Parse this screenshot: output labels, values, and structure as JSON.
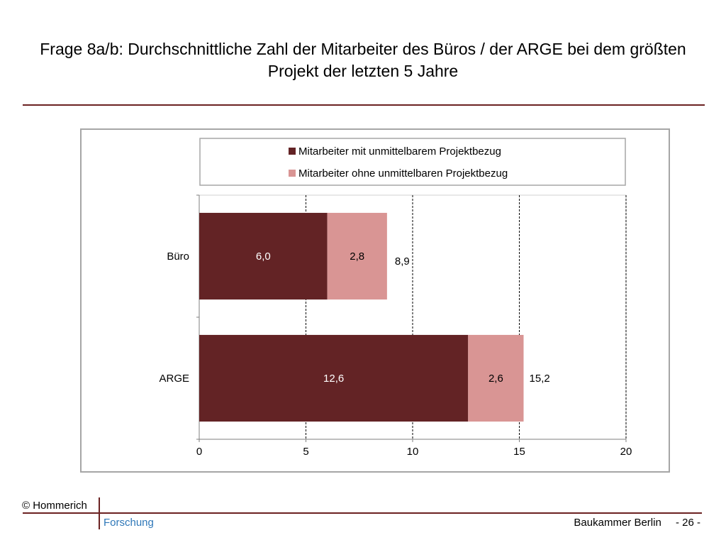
{
  "title": "Frage 8a/b: Durchschnittliche Zahl der Mitarbeiter des Büros / der ARGE bei dem größten Projekt der letzten 5 Jahre",
  "footer": {
    "copyright": "© Hommerich",
    "department": "Forschung",
    "organization": "Baukammer Berlin",
    "page": "- 26 -"
  },
  "colors": {
    "accent_rule": "#6b2222",
    "link_blue": "#2e77b8"
  },
  "chart_data": {
    "type": "bar",
    "orientation": "horizontal",
    "stacked": true,
    "categories": [
      "Büro",
      "ARGE"
    ],
    "series": [
      {
        "name": "Mitarbeiter mit unmittelbarem Projektbezug",
        "values": [
          6.0,
          12.6
        ],
        "labels": [
          "6,0",
          "12,6"
        ],
        "color": "#632325"
      },
      {
        "name": "Mitarbeiter ohne unmittelbaren Projektbezug",
        "values": [
          2.8,
          2.6
        ],
        "labels": [
          "2,8",
          "2,6"
        ],
        "color": "#d99594"
      }
    ],
    "totals": [
      8.9,
      15.2
    ],
    "total_labels": [
      "8,9",
      "15,2"
    ],
    "xlim": [
      0,
      20
    ],
    "xticks": [
      0,
      5,
      10,
      15,
      20
    ],
    "xtick_labels": [
      "0",
      "5",
      "10",
      "15",
      "20"
    ],
    "gridlines": "vertical dashed",
    "legend_position": "top"
  }
}
